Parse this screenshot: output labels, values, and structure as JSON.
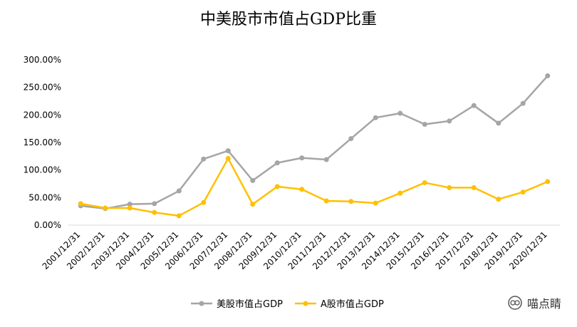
{
  "chart_data": {
    "type": "line",
    "title": "中美股市市值占GDP比重",
    "categories": [
      "2001/12/31",
      "2002/12/31",
      "2003/12/31",
      "2004/12/31",
      "2005/12/31",
      "2006/12/31",
      "2007/12/31",
      "2008/12/31",
      "2009/12/31",
      "2010/12/31",
      "2011/12/31",
      "2012/12/31",
      "2013/12/31",
      "2014/12/31",
      "2015/12/31",
      "2016/12/31",
      "2017/12/31",
      "2018/12/31",
      "2019/12/31",
      "2020/12/31"
    ],
    "series": [
      {
        "name": "美股市值占GDP",
        "color": "#a5a5a5",
        "values": [
          35,
          30,
          38,
          39,
          62,
          120,
          135,
          81,
          113,
          122,
          119,
          157,
          195,
          203,
          183,
          189,
          217,
          185,
          221,
          271
        ]
      },
      {
        "name": "A股市值占GDP",
        "color": "#ffc000",
        "values": [
          39,
          31,
          31,
          23,
          17,
          41,
          121,
          38,
          70,
          65,
          44,
          43,
          40,
          58,
          77,
          68,
          68,
          47,
          60,
          79
        ]
      }
    ],
    "ylim": [
      0,
      300
    ],
    "yticks": [
      "0.00%",
      "50.00%",
      "100.00%",
      "150.00%",
      "200.00%",
      "250.00%",
      "300.00%"
    ],
    "grid": false,
    "legend": "bottom"
  },
  "watermark": {
    "text": "喵点睛",
    "icon": "wechat-icon"
  }
}
